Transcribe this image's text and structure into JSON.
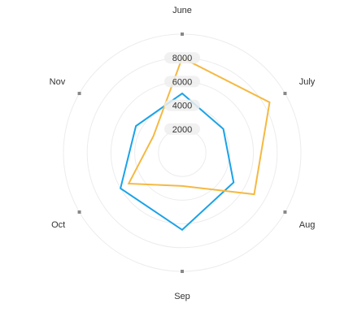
{
  "chart_data": {
    "type": "radar",
    "categories": [
      "June",
      "July",
      "Aug",
      "Sep",
      "Oct",
      "Nov"
    ],
    "radial_ticks": [
      2000,
      4000,
      6000,
      8000
    ],
    "rlim": [
      0,
      10000
    ],
    "grid": true,
    "series": [
      {
        "color": "#1aa3e8",
        "values": [
          5000,
          4000,
          5000,
          6500,
          6000,
          4500
        ]
      },
      {
        "color": "#f5b942",
        "values": [
          8000,
          8500,
          7000,
          2800,
          5200,
          2800
        ]
      }
    ]
  }
}
